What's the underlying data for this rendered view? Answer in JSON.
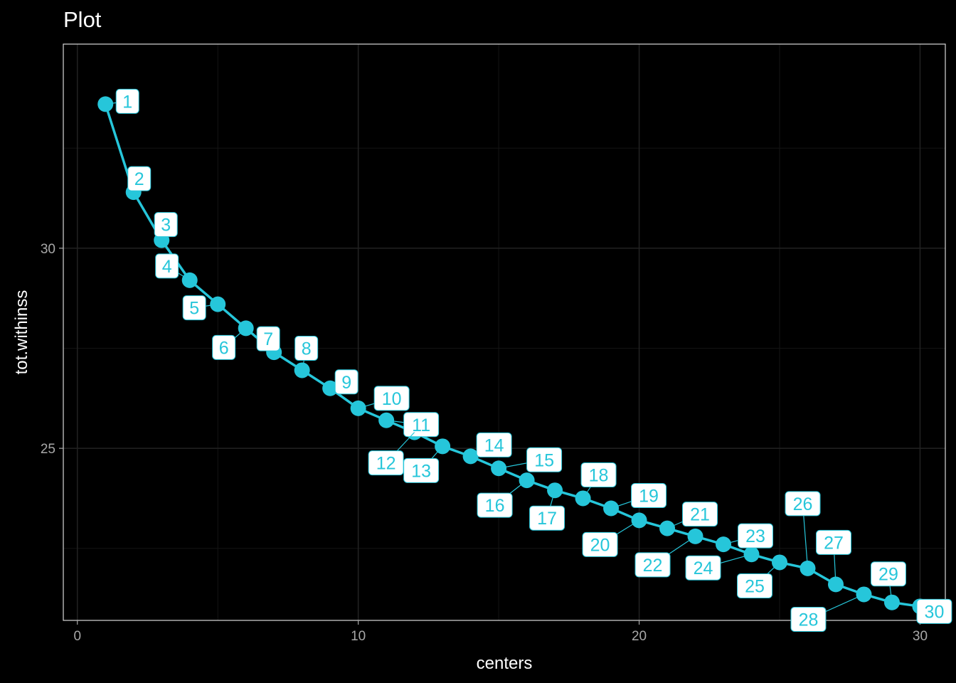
{
  "chart_data": {
    "type": "line",
    "title": "Plot",
    "xlabel": "centers",
    "ylabel": "tot.withinss",
    "xlim": [
      -0.5,
      30.9
    ],
    "ylim": [
      20.7,
      35.1
    ],
    "x_ticks": [
      0,
      10,
      20,
      30
    ],
    "x_tick_labels": [
      "0",
      "10",
      "20",
      "30"
    ],
    "y_ticks": [
      25,
      30
    ],
    "y_tick_labels": [
      "25",
      "30"
    ],
    "grid": true,
    "series_color": "#26c6da",
    "x": [
      1,
      2,
      3,
      4,
      5,
      6,
      7,
      8,
      9,
      10,
      11,
      12,
      13,
      14,
      15,
      16,
      17,
      18,
      19,
      20,
      21,
      22,
      23,
      24,
      25,
      26,
      27,
      28,
      29,
      30
    ],
    "values": [
      33.6,
      31.4,
      30.2,
      29.2,
      28.6,
      28.0,
      27.4,
      26.95,
      26.5,
      26.0,
      25.7,
      25.4,
      25.05,
      24.8,
      24.5,
      24.2,
      23.95,
      23.75,
      23.5,
      23.2,
      23.0,
      22.8,
      22.6,
      22.35,
      22.15,
      22.0,
      21.6,
      21.35,
      21.15,
      21.05
    ],
    "labels": [
      "1",
      "2",
      "3",
      "4",
      "5",
      "6",
      "7",
      "8",
      "9",
      "10",
      "11",
      "12",
      "13",
      "14",
      "15",
      "16",
      "17",
      "18",
      "19",
      "20",
      "21",
      "22",
      "23",
      "24",
      "25",
      "26",
      "27",
      "28",
      "29",
      "30"
    ]
  }
}
